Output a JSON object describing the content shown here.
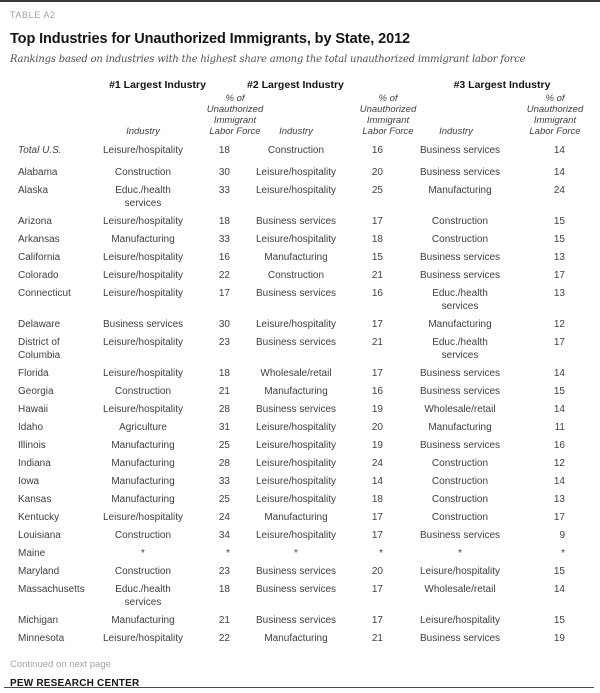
{
  "table_label": "TABLE A2",
  "title": "Top Industries for Unauthorized Immigrants, by State, 2012",
  "subtitle": "Rankings based on industries with the highest share among the total unauthorized immigrant labor force",
  "colors": {
    "rule": "#3a3a3a",
    "label_gray": "#a3a3a3",
    "title_text": "#141414",
    "body_text": "#3f3f3f"
  },
  "table": {
    "group_headers": [
      "#1 Largest Industry",
      "#2 Largest Industry",
      "#3 Largest Industry"
    ],
    "sub_headers": {
      "industry": "Industry",
      "share": "% of Unauthorized Immigrant Labor Force"
    },
    "rows": [
      {
        "state": "Total U.S.",
        "italic": true,
        "cells": [
          "Leisure/hospitality",
          "18",
          "Construction",
          "16",
          "Business services",
          "14"
        ]
      },
      {
        "state": "Alabama",
        "cells": [
          "Construction",
          "30",
          "Leisure/hospitality",
          "20",
          "Business services",
          "14"
        ]
      },
      {
        "state": "Alaska",
        "cells": [
          "Educ./health services",
          "33",
          "Leisure/hospitality",
          "25",
          "Manufacturing",
          "24"
        ]
      },
      {
        "state": "Arizona",
        "cells": [
          "Leisure/hospitality",
          "18",
          "Business services",
          "17",
          "Construction",
          "15"
        ]
      },
      {
        "state": "Arkansas",
        "cells": [
          "Manufacturing",
          "33",
          "Leisure/hospitality",
          "18",
          "Construction",
          "15"
        ]
      },
      {
        "state": "California",
        "cells": [
          "Leisure/hospitality",
          "16",
          "Manufacturing",
          "15",
          "Business services",
          "13"
        ]
      },
      {
        "state": "Colorado",
        "cells": [
          "Leisure/hospitality",
          "22",
          "Construction",
          "21",
          "Business services",
          "17"
        ]
      },
      {
        "state": "Connecticut",
        "cells": [
          "Leisure/hospitality",
          "17",
          "Business services",
          "16",
          "Educ./health services",
          "13"
        ]
      },
      {
        "state": "Delaware",
        "cells": [
          "Business services",
          "30",
          "Leisure/hospitality",
          "17",
          "Manufacturing",
          "12"
        ]
      },
      {
        "state": "District of Columbia",
        "cells": [
          "Leisure/hospitality",
          "23",
          "Business services",
          "21",
          "Educ./health services",
          "17"
        ]
      },
      {
        "state": "Florida",
        "cells": [
          "Leisure/hospitality",
          "18",
          "Wholesale/retail",
          "17",
          "Business services",
          "14"
        ]
      },
      {
        "state": "Georgia",
        "cells": [
          "Construction",
          "21",
          "Manufacturing",
          "16",
          "Business services",
          "15"
        ]
      },
      {
        "state": "Hawaii",
        "cells": [
          "Leisure/hospitality",
          "28",
          "Business services",
          "19",
          "Wholesale/retail",
          "14"
        ]
      },
      {
        "state": "Idaho",
        "cells": [
          "Agriculture",
          "31",
          "Leisure/hospitality",
          "20",
          "Manufacturing",
          "11"
        ]
      },
      {
        "state": "Illinois",
        "cells": [
          "Manufacturing",
          "25",
          "Leisure/hospitality",
          "19",
          "Business services",
          "16"
        ]
      },
      {
        "state": "Indiana",
        "cells": [
          "Manufacturing",
          "28",
          "Leisure/hospitality",
          "24",
          "Construction",
          "12"
        ]
      },
      {
        "state": "Iowa",
        "cells": [
          "Manufacturing",
          "33",
          "Leisure/hospitality",
          "14",
          "Construction",
          "14"
        ]
      },
      {
        "state": "Kansas",
        "cells": [
          "Manufacturing",
          "25",
          "Leisure/hospitality",
          "18",
          "Construction",
          "13"
        ]
      },
      {
        "state": "Kentucky",
        "cells": [
          "Leisure/hospitality",
          "24",
          "Manufacturing",
          "17",
          "Construction",
          "17"
        ]
      },
      {
        "state": "Louisiana",
        "cells": [
          "Construction",
          "34",
          "Leisure/hospitality",
          "17",
          "Business services",
          "9"
        ]
      },
      {
        "state": "Maine",
        "cells": [
          "*",
          "*",
          "*",
          "*",
          "*",
          "*"
        ]
      },
      {
        "state": "Maryland",
        "cells": [
          "Construction",
          "23",
          "Business services",
          "20",
          "Leisure/hospitality",
          "15"
        ]
      },
      {
        "state": "Massachusetts",
        "cells": [
          "Educ./health services",
          "18",
          "Business services",
          "17",
          "Wholesale/retail",
          "14"
        ]
      },
      {
        "state": "Michigan",
        "cells": [
          "Manufacturing",
          "21",
          "Business services",
          "17",
          "Leisure/hospitality",
          "15"
        ]
      },
      {
        "state": "Minnesota",
        "cells": [
          "Leisure/hospitality",
          "22",
          "Manufacturing",
          "21",
          "Business services",
          "19"
        ]
      }
    ]
  },
  "footer": {
    "continued": "Continued on next page",
    "source": "PEW RESEARCH CENTER"
  }
}
